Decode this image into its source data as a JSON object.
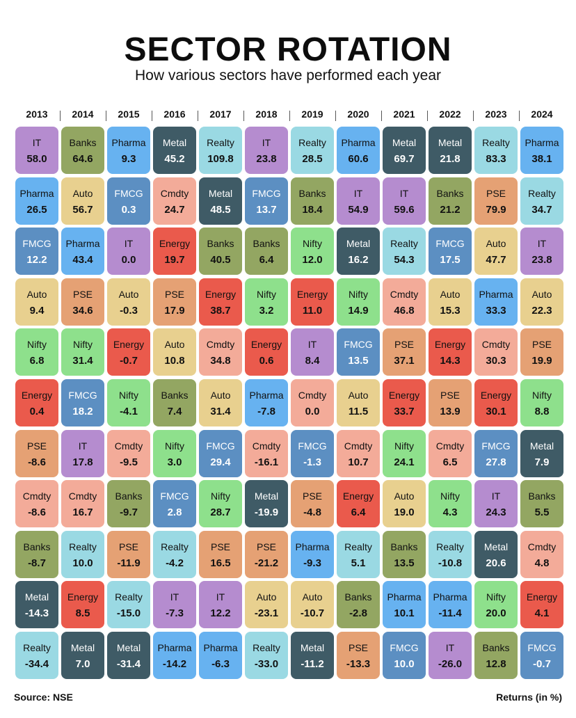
{
  "header": {
    "title": "SECTOR ROTATION",
    "subtitle": "How various sectors have performed each year"
  },
  "footer": {
    "source": "Source: NSE",
    "units": "Returns (in %)"
  },
  "sector_colors": {
    "IT": "#b58ccf",
    "Banks": "#93a662",
    "Pharma": "#67b2f0",
    "Metal": "#3f5b66",
    "Realty": "#9ad9e3",
    "FMCG": "#5c8fc2",
    "Cmdty": "#f3ab99",
    "Auto": "#e8d08f",
    "Energy": "#ea5a4c",
    "Nifty": "#8ee08c",
    "PSE": "#e5a174"
  },
  "dark_sectors": [
    "Metal",
    "FMCG"
  ],
  "chart_data": {
    "type": "table",
    "title": "SECTOR ROTATION",
    "subtitle": "How various sectors have performed each year",
    "columns": [
      {
        "year": "2013",
        "entries": [
          {
            "sector": "IT",
            "value": "58.0"
          },
          {
            "sector": "Pharma",
            "value": "26.5"
          },
          {
            "sector": "FMCG",
            "value": "12.2"
          },
          {
            "sector": "Auto",
            "value": "9.4"
          },
          {
            "sector": "Nifty",
            "value": "6.8"
          },
          {
            "sector": "Energy",
            "value": "0.4"
          },
          {
            "sector": "PSE",
            "value": "-8.6"
          },
          {
            "sector": "Cmdty",
            "value": "-8.6"
          },
          {
            "sector": "Banks",
            "value": "-8.7"
          },
          {
            "sector": "Metal",
            "value": "-14.3"
          },
          {
            "sector": "Realty",
            "value": "-34.4"
          }
        ]
      },
      {
        "year": "2014",
        "entries": [
          {
            "sector": "Banks",
            "value": "64.6"
          },
          {
            "sector": "Auto",
            "value": "56.7"
          },
          {
            "sector": "Pharma",
            "value": "43.4"
          },
          {
            "sector": "PSE",
            "value": "34.6"
          },
          {
            "sector": "Nifty",
            "value": "31.4"
          },
          {
            "sector": "FMCG",
            "value": "18.2"
          },
          {
            "sector": "IT",
            "value": "17.8"
          },
          {
            "sector": "Cmdty",
            "value": "16.7"
          },
          {
            "sector": "Realty",
            "value": "10.0"
          },
          {
            "sector": "Energy",
            "value": "8.5"
          },
          {
            "sector": "Metal",
            "value": "7.0"
          }
        ]
      },
      {
        "year": "2015",
        "entries": [
          {
            "sector": "Pharma",
            "value": "9.3"
          },
          {
            "sector": "FMCG",
            "value": "0.3"
          },
          {
            "sector": "IT",
            "value": "0.0"
          },
          {
            "sector": "Auto",
            "value": "-0.3"
          },
          {
            "sector": "Energy",
            "value": "-0.7"
          },
          {
            "sector": "Nifty",
            "value": "-4.1"
          },
          {
            "sector": "Cmdty",
            "value": "-9.5"
          },
          {
            "sector": "Banks",
            "value": "-9.7"
          },
          {
            "sector": "PSE",
            "value": "-11.9"
          },
          {
            "sector": "Realty",
            "value": "-15.0"
          },
          {
            "sector": "Metal",
            "value": "-31.4"
          }
        ]
      },
      {
        "year": "2016",
        "entries": [
          {
            "sector": "Metal",
            "value": "45.2"
          },
          {
            "sector": "Cmdty",
            "value": "24.7"
          },
          {
            "sector": "Energy",
            "value": "19.7"
          },
          {
            "sector": "PSE",
            "value": "17.9"
          },
          {
            "sector": "Auto",
            "value": "10.8"
          },
          {
            "sector": "Banks",
            "value": "7.4"
          },
          {
            "sector": "Nifty",
            "value": "3.0"
          },
          {
            "sector": "FMCG",
            "value": "2.8"
          },
          {
            "sector": "Realty",
            "value": "-4.2"
          },
          {
            "sector": "IT",
            "value": "-7.3"
          },
          {
            "sector": "Pharma",
            "value": "-14.2"
          }
        ]
      },
      {
        "year": "2017",
        "entries": [
          {
            "sector": "Realty",
            "value": "109.8"
          },
          {
            "sector": "Metal",
            "value": "48.5"
          },
          {
            "sector": "Banks",
            "value": "40.5"
          },
          {
            "sector": "Energy",
            "value": "38.7"
          },
          {
            "sector": "Cmdty",
            "value": "34.8"
          },
          {
            "sector": "Auto",
            "value": "31.4"
          },
          {
            "sector": "FMCG",
            "value": "29.4"
          },
          {
            "sector": "Nifty",
            "value": "28.7"
          },
          {
            "sector": "PSE",
            "value": "16.5"
          },
          {
            "sector": "IT",
            "value": "12.2"
          },
          {
            "sector": "Pharma",
            "value": "-6.3"
          }
        ]
      },
      {
        "year": "2018",
        "entries": [
          {
            "sector": "IT",
            "value": "23.8"
          },
          {
            "sector": "FMCG",
            "value": "13.7"
          },
          {
            "sector": "Banks",
            "value": "6.4"
          },
          {
            "sector": "Nifty",
            "value": "3.2"
          },
          {
            "sector": "Energy",
            "value": "0.6"
          },
          {
            "sector": "Pharma",
            "value": "-7.8"
          },
          {
            "sector": "Cmdty",
            "value": "-16.1"
          },
          {
            "sector": "Metal",
            "value": "-19.9"
          },
          {
            "sector": "PSE",
            "value": "-21.2"
          },
          {
            "sector": "Auto",
            "value": "-23.1"
          },
          {
            "sector": "Realty",
            "value": "-33.0"
          }
        ]
      },
      {
        "year": "2019",
        "entries": [
          {
            "sector": "Realty",
            "value": "28.5"
          },
          {
            "sector": "Banks",
            "value": "18.4"
          },
          {
            "sector": "Nifty",
            "value": "12.0"
          },
          {
            "sector": "Energy",
            "value": "11.0"
          },
          {
            "sector": "IT",
            "value": "8.4"
          },
          {
            "sector": "Cmdty",
            "value": "0.0"
          },
          {
            "sector": "FMCG",
            "value": "-1.3"
          },
          {
            "sector": "PSE",
            "value": "-4.8"
          },
          {
            "sector": "Pharma",
            "value": "-9.3"
          },
          {
            "sector": "Auto",
            "value": "-10.7"
          },
          {
            "sector": "Metal",
            "value": "-11.2"
          }
        ]
      },
      {
        "year": "2020",
        "entries": [
          {
            "sector": "Pharma",
            "value": "60.6"
          },
          {
            "sector": "IT",
            "value": "54.9"
          },
          {
            "sector": "Metal",
            "value": "16.2"
          },
          {
            "sector": "Nifty",
            "value": "14.9"
          },
          {
            "sector": "FMCG",
            "value": "13.5"
          },
          {
            "sector": "Auto",
            "value": "11.5"
          },
          {
            "sector": "Cmdty",
            "value": "10.7"
          },
          {
            "sector": "Energy",
            "value": "6.4"
          },
          {
            "sector": "Realty",
            "value": "5.1"
          },
          {
            "sector": "Banks",
            "value": "-2.8"
          },
          {
            "sector": "PSE",
            "value": "-13.3"
          }
        ]
      },
      {
        "year": "2021",
        "entries": [
          {
            "sector": "Metal",
            "value": "69.7"
          },
          {
            "sector": "IT",
            "value": "59.6"
          },
          {
            "sector": "Realty",
            "value": "54.3"
          },
          {
            "sector": "Cmdty",
            "value": "46.8"
          },
          {
            "sector": "PSE",
            "value": "37.1"
          },
          {
            "sector": "Energy",
            "value": "33.7"
          },
          {
            "sector": "Nifty",
            "value": "24.1"
          },
          {
            "sector": "Auto",
            "value": "19.0"
          },
          {
            "sector": "Banks",
            "value": "13.5"
          },
          {
            "sector": "Pharma",
            "value": "10.1"
          },
          {
            "sector": "FMCG",
            "value": "10.0"
          }
        ]
      },
      {
        "year": "2022",
        "entries": [
          {
            "sector": "Metal",
            "value": "21.8"
          },
          {
            "sector": "Banks",
            "value": "21.2"
          },
          {
            "sector": "FMCG",
            "value": "17.5"
          },
          {
            "sector": "Auto",
            "value": "15.3"
          },
          {
            "sector": "Energy",
            "value": "14.3"
          },
          {
            "sector": "PSE",
            "value": "13.9"
          },
          {
            "sector": "Cmdty",
            "value": "6.5"
          },
          {
            "sector": "Nifty",
            "value": "4.3"
          },
          {
            "sector": "Realty",
            "value": "-10.8"
          },
          {
            "sector": "Pharma",
            "value": "-11.4"
          },
          {
            "sector": "IT",
            "value": "-26.0"
          }
        ]
      },
      {
        "year": "2023",
        "entries": [
          {
            "sector": "Realty",
            "value": "83.3"
          },
          {
            "sector": "PSE",
            "value": "79.9"
          },
          {
            "sector": "Auto",
            "value": "47.7"
          },
          {
            "sector": "Pharma",
            "value": "33.3"
          },
          {
            "sector": "Cmdty",
            "value": "30.3"
          },
          {
            "sector": "Energy",
            "value": "30.1"
          },
          {
            "sector": "FMCG",
            "value": "27.8"
          },
          {
            "sector": "IT",
            "value": "24.3"
          },
          {
            "sector": "Metal",
            "value": "20.6"
          },
          {
            "sector": "Nifty",
            "value": "20.0"
          },
          {
            "sector": "Banks",
            "value": "12.8"
          }
        ]
      },
      {
        "year": "2024",
        "entries": [
          {
            "sector": "Pharma",
            "value": "38.1"
          },
          {
            "sector": "Realty",
            "value": "34.7"
          },
          {
            "sector": "IT",
            "value": "23.8"
          },
          {
            "sector": "Auto",
            "value": "22.3"
          },
          {
            "sector": "PSE",
            "value": "19.9"
          },
          {
            "sector": "Nifty",
            "value": "8.8"
          },
          {
            "sector": "Metal",
            "value": "7.9"
          },
          {
            "sector": "Banks",
            "value": "5.5"
          },
          {
            "sector": "Cmdty",
            "value": "4.8"
          },
          {
            "sector": "Energy",
            "value": "4.1"
          },
          {
            "sector": "FMCG",
            "value": "-0.7"
          }
        ]
      }
    ]
  }
}
